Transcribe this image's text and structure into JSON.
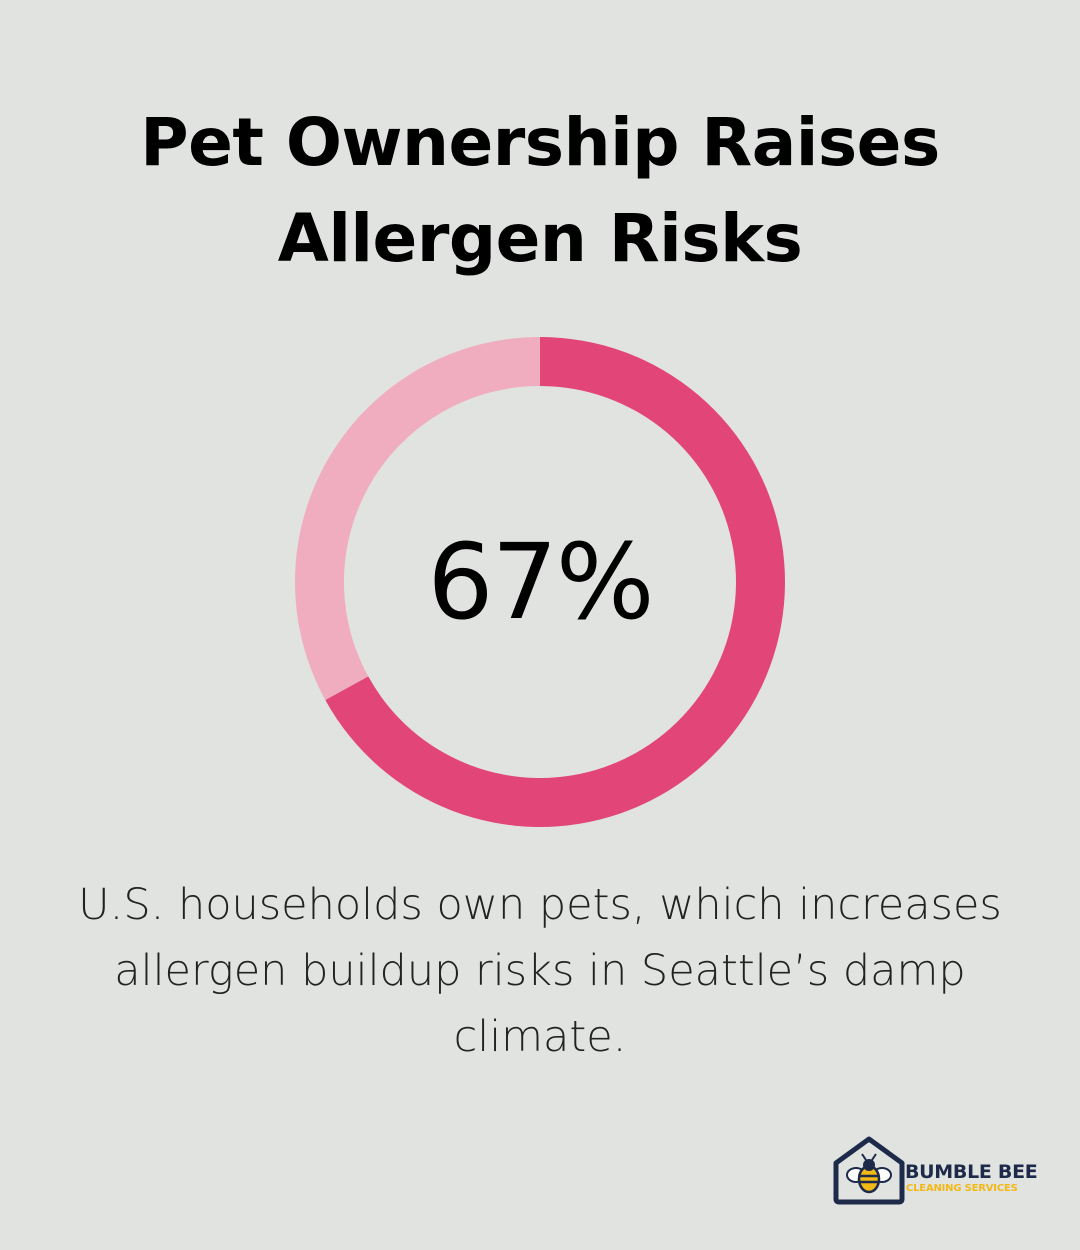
{
  "title": "Pet Ownership Raises Allergen Risks",
  "chart_data": {
    "type": "pie",
    "style": "donut",
    "values": [
      67,
      33
    ],
    "center_label": "67%",
    "colors": [
      "#e24577",
      "#f0adc0"
    ]
  },
  "caption": "U.S. households own pets, which increases allergen buildup risks in Seattle’s damp climate.",
  "logo": {
    "name": "BUMBLE BEE",
    "tagline": "CLEANING SERVICES",
    "icon": "bee-house-icon",
    "colors": {
      "navy": "#1d2a4a",
      "yellow": "#f2b816"
    }
  }
}
